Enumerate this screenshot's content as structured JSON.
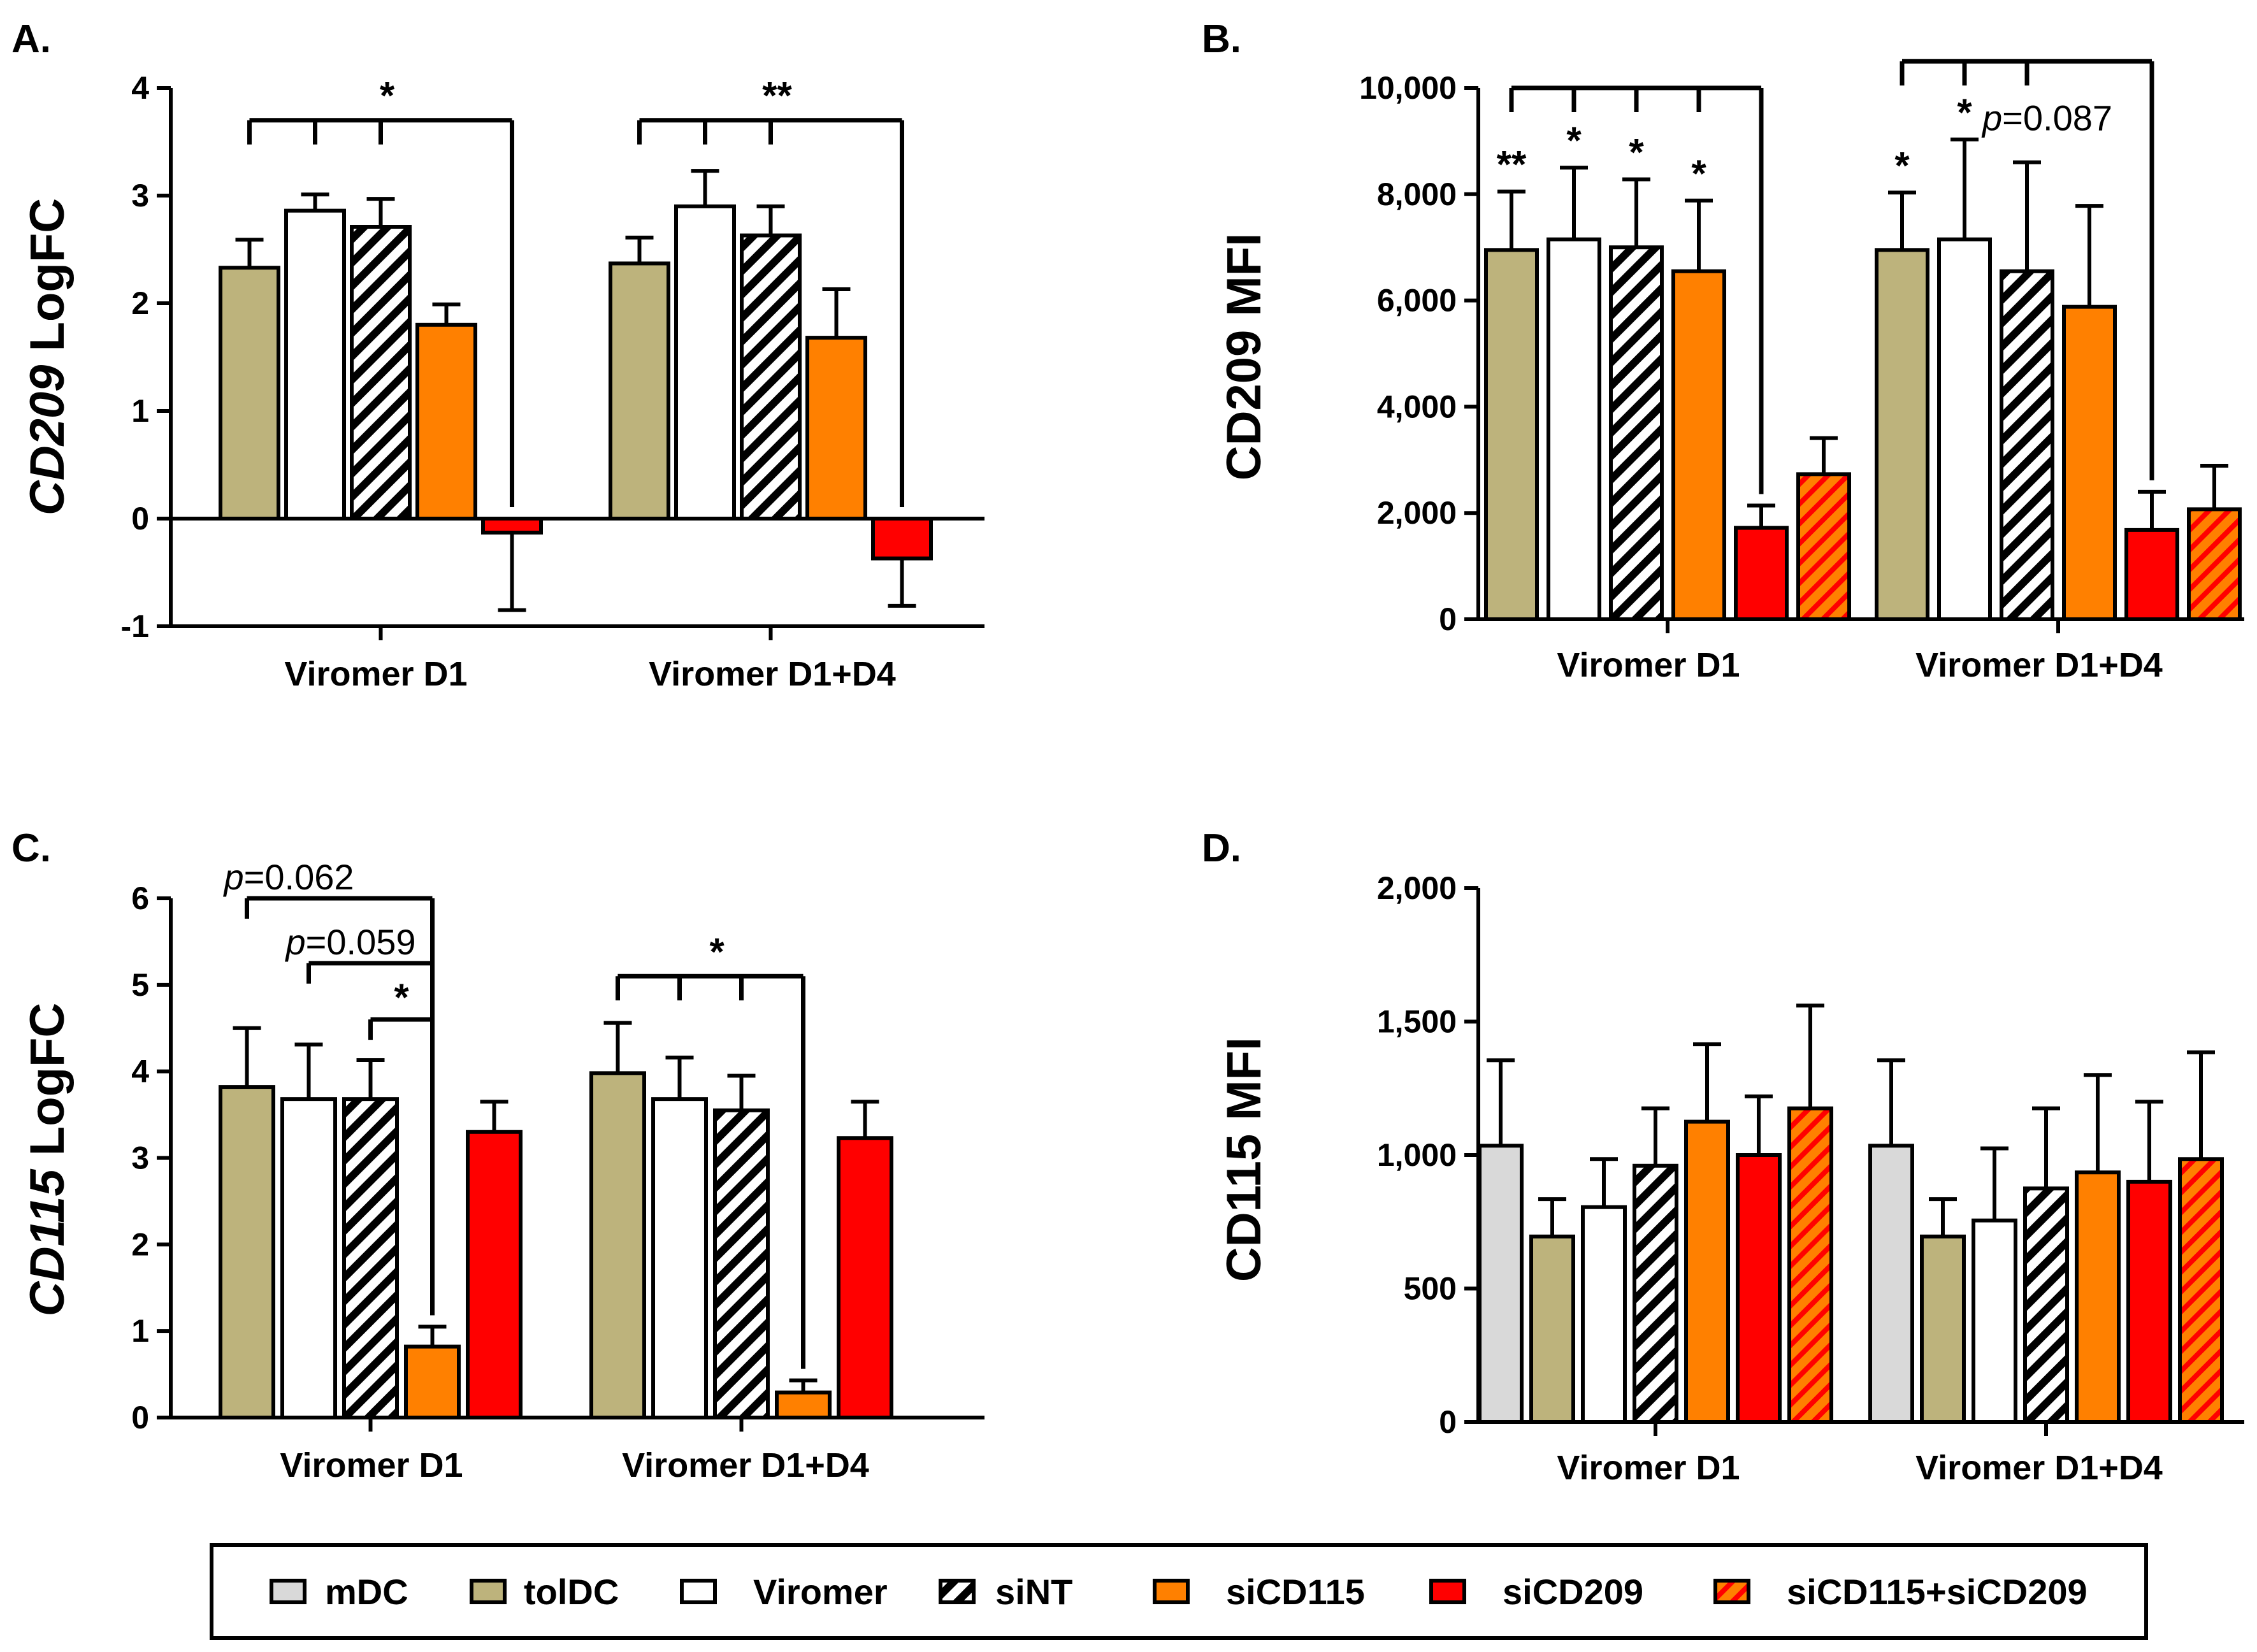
{
  "legend": [
    {
      "id": "mDC",
      "label": "mDC",
      "color": "#d9d9d9",
      "hatch": false
    },
    {
      "id": "tolDC",
      "label": "tolDC",
      "color": "#bdb37c",
      "hatch": false
    },
    {
      "id": "Viromer",
      "label": "Viromer",
      "color": "#ffffff",
      "hatch": false
    },
    {
      "id": "siNT",
      "label": "siNT",
      "color": "#ffffff",
      "hatch": true,
      "hatch_color": "#000000"
    },
    {
      "id": "siCD115",
      "label": "siCD115",
      "color": "#ff8000",
      "hatch": false
    },
    {
      "id": "siCD209",
      "label": "siCD209",
      "color": "#ff0000",
      "hatch": false
    },
    {
      "id": "siCD115+siCD209",
      "label": "siCD115+siCD209",
      "color": "#ff8000",
      "hatch": true,
      "hatch_color": "#ff0000"
    }
  ],
  "chart_data": [
    {
      "panel": "A.",
      "type": "bar",
      "ylabel_italic": "CD209",
      "ylabel_rest": " LogFC",
      "ylim": [
        -1,
        4
      ],
      "yticks": [
        -1,
        0,
        1,
        2,
        3,
        4
      ],
      "ytick_labels": [
        "-1",
        "0",
        "1",
        "2",
        "3",
        "4"
      ],
      "groups": [
        "Viromer D1",
        "Viromer D1+D4"
      ],
      "series_ids": [
        "tolDC",
        "Viromer",
        "siNT",
        "siCD115",
        "siCD209"
      ],
      "values": [
        [
          2.33,
          2.86,
          2.71,
          1.8,
          -0.13
        ],
        [
          2.37,
          2.9,
          2.63,
          1.68,
          -0.37
        ]
      ],
      "errors": [
        [
          0.26,
          0.15,
          0.26,
          0.19,
          0.72
        ],
        [
          0.24,
          0.33,
          0.27,
          0.45,
          0.44
        ]
      ],
      "annotations": [
        {
          "type": "bracket",
          "group": 0,
          "from": [
            0,
            1,
            2
          ],
          "to": 4,
          "y": 3.7,
          "text": "*"
        },
        {
          "type": "bracket",
          "group": 1,
          "from": [
            0,
            1,
            2
          ],
          "to": 4,
          "y": 3.7,
          "text": "**"
        }
      ]
    },
    {
      "panel": "B.",
      "type": "bar",
      "ylabel_italic": "",
      "ylabel_rest": "CD209 MFI",
      "ylim": [
        0,
        10000
      ],
      "yticks": [
        0,
        2000,
        4000,
        6000,
        8000,
        10000
      ],
      "ytick_labels": [
        "0",
        "2,000",
        "4,000",
        "6,000",
        "8,000",
        "10,000"
      ],
      "groups": [
        "Viromer D1",
        "Viromer D1+D4"
      ],
      "series_ids": [
        "tolDC",
        "Viromer",
        "siNT",
        "siCD115",
        "siCD209",
        "siCD115+siCD209"
      ],
      "values": [
        [
          6950,
          7150,
          7000,
          6550,
          1720,
          2730
        ],
        [
          6950,
          7150,
          6550,
          5880,
          1680,
          2070
        ]
      ],
      "errors": [
        [
          1100,
          1350,
          1280,
          1330,
          420,
          680
        ],
        [
          1080,
          1880,
          2050,
          1900,
          720,
          820
        ]
      ],
      "annotations": [
        {
          "type": "bracket",
          "group": 0,
          "from": [
            0,
            1,
            2,
            3
          ],
          "to": 4,
          "y": 10000,
          "text": ""
        },
        {
          "type": "bracket",
          "group": 1,
          "from": [
            0,
            1,
            2
          ],
          "to": 4,
          "y": 10500,
          "text": ""
        },
        {
          "type": "star",
          "group": 0,
          "bar": 0,
          "text": "**"
        },
        {
          "type": "star",
          "group": 0,
          "bar": 1,
          "text": "*"
        },
        {
          "type": "star",
          "group": 0,
          "bar": 2,
          "text": "*"
        },
        {
          "type": "star",
          "group": 0,
          "bar": 3,
          "text": "*"
        },
        {
          "type": "star",
          "group": 1,
          "bar": 0,
          "text": "*"
        },
        {
          "type": "star",
          "group": 1,
          "bar": 1,
          "text": "*"
        },
        {
          "type": "pvalue",
          "group": 1,
          "bar": 2,
          "italic": "p",
          "text": "=0.087",
          "y": 9200
        }
      ]
    },
    {
      "panel": "C.",
      "type": "bar",
      "ylabel_italic": "CD115",
      "ylabel_rest": " LogFC",
      "ylim": [
        0,
        6
      ],
      "yticks": [
        0,
        1,
        2,
        3,
        4,
        5,
        6
      ],
      "ytick_labels": [
        "0",
        "1",
        "2",
        "3",
        "4",
        "5",
        "6"
      ],
      "groups": [
        "Viromer D1",
        "Viromer D1+D4"
      ],
      "series_ids": [
        "tolDC",
        "Viromer",
        "siNT",
        "siCD115",
        "siCD209"
      ],
      "values": [
        [
          3.82,
          3.68,
          3.68,
          0.82,
          3.3
        ],
        [
          3.98,
          3.68,
          3.55,
          0.29,
          3.23
        ]
      ],
      "errors": [
        [
          0.68,
          0.63,
          0.45,
          0.23,
          0.35
        ],
        [
          0.58,
          0.48,
          0.4,
          0.14,
          0.42
        ]
      ],
      "annotations": [
        {
          "type": "line",
          "group": 0,
          "from": [
            0
          ],
          "to": 3,
          "y": 6.0,
          "italic": "p",
          "text": "=0.062"
        },
        {
          "type": "line",
          "group": 0,
          "from": [
            1
          ],
          "to": 3,
          "y": 5.25,
          "italic": "p",
          "text": "=0.059"
        },
        {
          "type": "line",
          "group": 0,
          "from": [
            2
          ],
          "to": 3,
          "y": 4.6,
          "italic": "",
          "text": "*"
        },
        {
          "type": "bracket",
          "group": 1,
          "from": [
            0,
            1,
            2
          ],
          "to": 3,
          "y": 5.1,
          "text": "*"
        }
      ]
    },
    {
      "panel": "D.",
      "type": "bar",
      "ylabel_italic": "",
      "ylabel_rest": "CD115 MFI",
      "ylim": [
        0,
        2000
      ],
      "yticks": [
        0,
        500,
        1000,
        1500,
        2000
      ],
      "ytick_labels": [
        "0",
        "500",
        "1,000",
        "1,500",
        "2,000"
      ],
      "groups": [
        "Viromer D1",
        "Viromer D1+D4"
      ],
      "series_ids": [
        "mDC",
        "tolDC",
        "Viromer",
        "siNT",
        "siCD115",
        "siCD209",
        "siCD115+siCD209"
      ],
      "values": [
        [
          1035,
          695,
          805,
          960,
          1125,
          1000,
          1175
        ],
        [
          1035,
          695,
          755,
          875,
          935,
          900,
          985
        ]
      ],
      "errors": [
        [
          320,
          140,
          180,
          215,
          290,
          220,
          385
        ],
        [
          320,
          140,
          270,
          300,
          365,
          300,
          400
        ]
      ],
      "annotations": []
    }
  ]
}
